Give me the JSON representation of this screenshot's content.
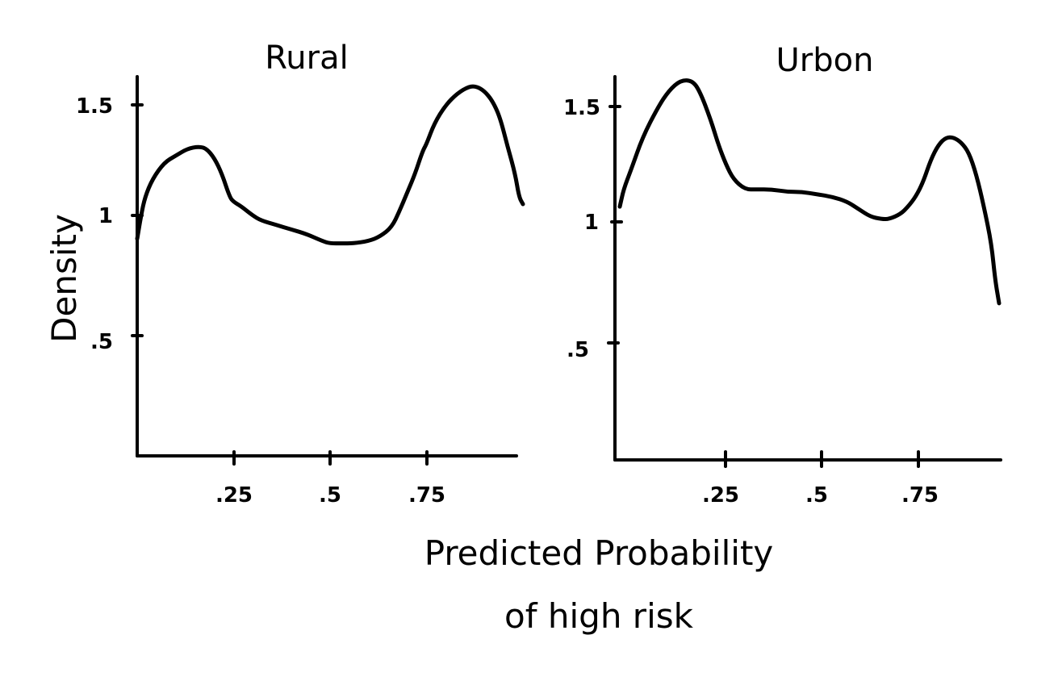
{
  "chart_data": {
    "type": "line",
    "xlabel_lines": [
      "Predicted Probability",
      "of high risk"
    ],
    "ylabel": "Density",
    "xlim": [
      0,
      1
    ],
    "ylim": [
      0,
      1.75
    ],
    "x_ticks": [
      0.25,
      0.5,
      0.75
    ],
    "y_ticks": [
      0.5,
      1,
      1.5
    ],
    "grid": false,
    "panels": [
      {
        "title": "Rural",
        "x_tick_labels": [
          ".25",
          ".5",
          ".75"
        ],
        "y_tick_labels": [
          ".5",
          "1",
          "1.5"
        ],
        "series": [
          {
            "x": [
              0.0,
              0.01,
              0.02,
              0.04,
              0.07,
              0.1,
              0.13,
              0.16,
              0.18,
              0.2,
              0.22,
              0.24,
              0.25,
              0.27,
              0.3,
              0.32,
              0.36,
              0.4,
              0.44,
              0.48,
              0.5,
              0.53,
              0.56,
              0.6,
              0.63,
              0.66,
              0.68,
              0.7,
              0.72,
              0.74,
              0.75,
              0.77,
              0.8,
              0.83,
              0.86,
              0.88,
              0.9,
              0.92,
              0.94,
              0.96,
              0.98,
              0.99,
              1.0
            ],
            "y": [
              0.92,
              1.02,
              1.1,
              1.18,
              1.25,
              1.28,
              1.31,
              1.32,
              1.31,
              1.27,
              1.2,
              1.1,
              1.08,
              1.06,
              1.02,
              1.0,
              0.98,
              0.96,
              0.94,
              0.91,
              0.9,
              0.9,
              0.9,
              0.91,
              0.93,
              0.97,
              1.04,
              1.12,
              1.2,
              1.3,
              1.33,
              1.42,
              1.5,
              1.55,
              1.58,
              1.58,
              1.56,
              1.52,
              1.45,
              1.32,
              1.2,
              1.1,
              1.07
            ]
          }
        ]
      },
      {
        "title": "Urbon",
        "x_tick_labels": [
          ".25",
          ".5",
          ".75"
        ],
        "y_tick_labels": [
          ".5",
          "1",
          "1.5"
        ],
        "series": [
          {
            "x": [
              0.0,
              0.01,
              0.03,
              0.06,
              0.1,
              0.13,
              0.16,
              0.19,
              0.21,
              0.24,
              0.26,
              0.28,
              0.3,
              0.33,
              0.36,
              0.4,
              0.44,
              0.48,
              0.52,
              0.56,
              0.6,
              0.63,
              0.66,
              0.69,
              0.71,
              0.74,
              0.76,
              0.78,
              0.8,
              0.82,
              0.84,
              0.86,
              0.88,
              0.9,
              0.92,
              0.94,
              0.96,
              0.98,
              0.99,
              1.0
            ],
            "y": [
              1.05,
              1.12,
              1.2,
              1.33,
              1.45,
              1.52,
              1.56,
              1.56,
              1.52,
              1.4,
              1.3,
              1.22,
              1.16,
              1.12,
              1.12,
              1.12,
              1.11,
              1.11,
              1.1,
              1.09,
              1.07,
              1.04,
              1.01,
              1.0,
              1.0,
              1.02,
              1.05,
              1.09,
              1.15,
              1.24,
              1.3,
              1.33,
              1.33,
              1.31,
              1.27,
              1.18,
              1.05,
              0.9,
              0.75,
              0.66
            ]
          }
        ]
      }
    ]
  }
}
